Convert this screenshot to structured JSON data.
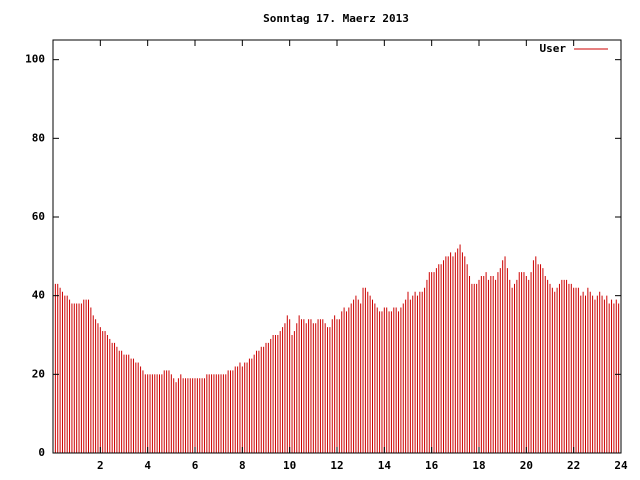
{
  "chart_data": {
    "type": "impulse",
    "title": "Sonntag 17. Maerz 2013",
    "series": [
      {
        "name": "User",
        "color": "#cc0000",
        "values": [
          43,
          43,
          42,
          41,
          40,
          40,
          39,
          38,
          38,
          38,
          38,
          38,
          39,
          39,
          39,
          37,
          35,
          34,
          33,
          32,
          31,
          31,
          30,
          29,
          28,
          28,
          27,
          26,
          26,
          25,
          25,
          25,
          24,
          24,
          23,
          23,
          22,
          21,
          20,
          20,
          20,
          20,
          20,
          20,
          20,
          20,
          21,
          21,
          21,
          20,
          19,
          18,
          19,
          20,
          19,
          19,
          19,
          19,
          19,
          19,
          19,
          19,
          19,
          19,
          20,
          20,
          20,
          20,
          20,
          20,
          20,
          20,
          20,
          21,
          21,
          21,
          22,
          22,
          23,
          22,
          23,
          23,
          24,
          24,
          25,
          26,
          26,
          27,
          27,
          28,
          28,
          29,
          30,
          30,
          30,
          31,
          32,
          33,
          35,
          34,
          30,
          31,
          33,
          35,
          34,
          34,
          33,
          34,
          34,
          33,
          33,
          34,
          34,
          34,
          33,
          32,
          32,
          34,
          35,
          34,
          34,
          36,
          37,
          36,
          37,
          38,
          39,
          40,
          39,
          38,
          42,
          42,
          41,
          40,
          39,
          38,
          37,
          36,
          36,
          37,
          37,
          36,
          36,
          37,
          37,
          36,
          37,
          38,
          39,
          41,
          39,
          40,
          41,
          40,
          41,
          41,
          42,
          44,
          46,
          46,
          46,
          47,
          48,
          48,
          49,
          50,
          50,
          51,
          50,
          51,
          52,
          53,
          51,
          50,
          48,
          45,
          43,
          43,
          43,
          44,
          45,
          45,
          46,
          44,
          45,
          45,
          44,
          46,
          47,
          49,
          50,
          47,
          44,
          42,
          43,
          44,
          46,
          46,
          46,
          45,
          44,
          46,
          49,
          50,
          48,
          48,
          47,
          45,
          44,
          43,
          42,
          41,
          42,
          43,
          44,
          44,
          44,
          43,
          43,
          42,
          42,
          42,
          40,
          41,
          40,
          42,
          41,
          40,
          39,
          40,
          41,
          40,
          39,
          40,
          38,
          39,
          38,
          39,
          38,
          37
        ]
      }
    ],
    "x": [
      0.1,
      0.2,
      0.3,
      0.4,
      0.5,
      0.6,
      0.7,
      0.8,
      0.9,
      1.0,
      1.1,
      1.2,
      1.3,
      1.4,
      1.5,
      1.6,
      1.7,
      1.8,
      1.9,
      2.0,
      2.1,
      2.2,
      2.3,
      2.4,
      2.5,
      2.6,
      2.7,
      2.8,
      2.9,
      3.0,
      3.1,
      3.2,
      3.3,
      3.4,
      3.5,
      3.6,
      3.7,
      3.8,
      3.9,
      4.0,
      4.1,
      4.2,
      4.3,
      4.4,
      4.5,
      4.6,
      4.7,
      4.8,
      4.9,
      5.0,
      5.1,
      5.2,
      5.3,
      5.4,
      5.5,
      5.6,
      5.7,
      5.8,
      5.9,
      6.0,
      6.1,
      6.2,
      6.3,
      6.4,
      6.5,
      6.6,
      6.7,
      6.8,
      6.9,
      7.0,
      7.1,
      7.2,
      7.3,
      7.4,
      7.5,
      7.6,
      7.7,
      7.8,
      7.9,
      8.0,
      8.1,
      8.2,
      8.3,
      8.4,
      8.5,
      8.6,
      8.7,
      8.8,
      8.9,
      9.0,
      9.1,
      9.2,
      9.3,
      9.4,
      9.5,
      9.6,
      9.7,
      9.8,
      9.9,
      10.0,
      10.1,
      10.2,
      10.3,
      10.4,
      10.5,
      10.6,
      10.7,
      10.8,
      10.9,
      11.0,
      11.1,
      11.2,
      11.3,
      11.4,
      11.5,
      11.6,
      11.7,
      11.8,
      11.9,
      12.0,
      12.1,
      12.2,
      12.3,
      12.4,
      12.5,
      12.6,
      12.7,
      12.8,
      12.9,
      13.0,
      13.1,
      13.2,
      13.3,
      13.4,
      13.5,
      13.6,
      13.7,
      13.8,
      13.9,
      14.0,
      14.1,
      14.2,
      14.3,
      14.4,
      14.5,
      14.6,
      14.7,
      14.8,
      14.9,
      15.0,
      15.1,
      15.2,
      15.3,
      15.4,
      15.5,
      15.6,
      15.7,
      15.8,
      15.9,
      16.0,
      16.1,
      16.2,
      16.3,
      16.4,
      16.5,
      16.6,
      16.7,
      16.8,
      16.9,
      17.0,
      17.1,
      17.2,
      17.3,
      17.4,
      17.5,
      17.6,
      17.7,
      17.8,
      17.9,
      18.0,
      18.1,
      18.2,
      18.3,
      18.4,
      18.5,
      18.6,
      18.7,
      18.8,
      18.9,
      19.0,
      19.1,
      19.2,
      19.3,
      19.4,
      19.5,
      19.6,
      19.7,
      19.8,
      19.9,
      20.0,
      20.1,
      20.2,
      20.3,
      20.4,
      20.5,
      20.6,
      20.7,
      20.8,
      20.9,
      21.0,
      21.1,
      21.2,
      21.3,
      21.4,
      21.5,
      21.6,
      21.7,
      21.8,
      21.9,
      22.0,
      22.1,
      22.2,
      22.3,
      22.4,
      22.5,
      22.6,
      22.7,
      22.8,
      22.9,
      23.0,
      23.1,
      23.2,
      23.3,
      23.4,
      23.5,
      23.6,
      23.7,
      23.8,
      23.9,
      24.0
    ],
    "xlim": [
      0,
      24
    ],
    "xticks": [
      2,
      4,
      6,
      8,
      10,
      12,
      14,
      16,
      18,
      20,
      22,
      24
    ],
    "ylim": [
      0,
      105
    ],
    "yticks": [
      0,
      20,
      40,
      60,
      80,
      100
    ],
    "legend": "top-right"
  }
}
